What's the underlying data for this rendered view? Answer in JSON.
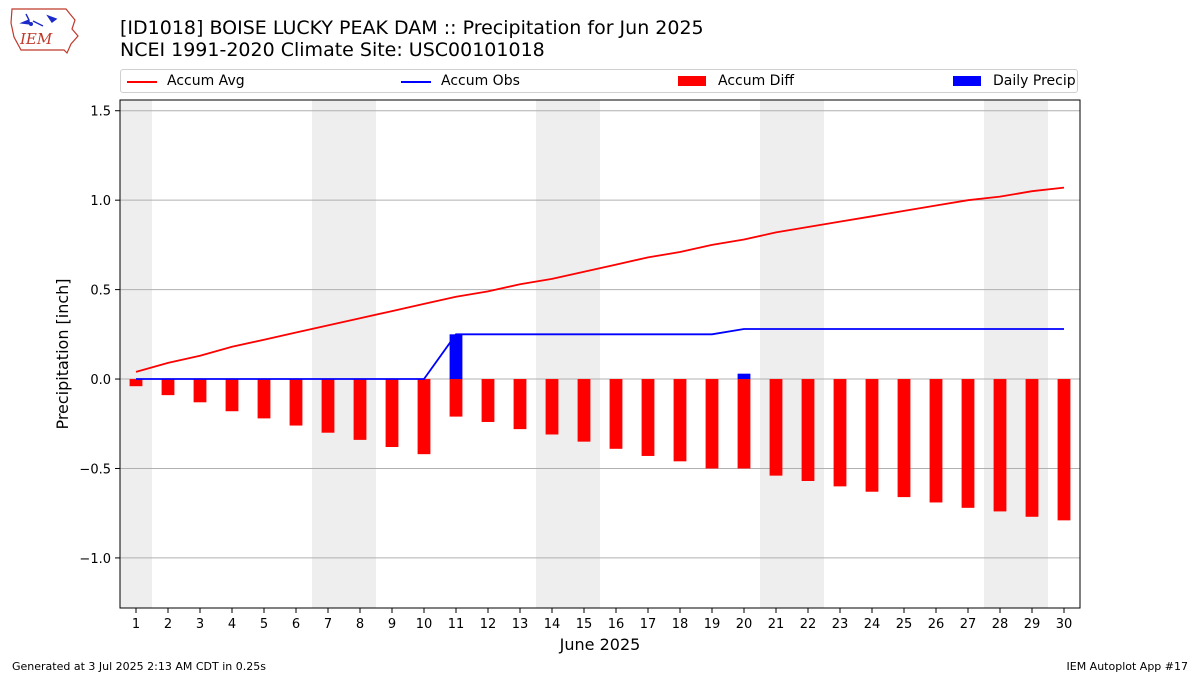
{
  "header": {
    "title_line1": "[ID1018] BOISE LUCKY PEAK DAM :: Precipitation for Jun 2025",
    "title_line2": "NCEI 1991-2020 Climate Site: USC00101018",
    "logo_text": "IEM"
  },
  "footer": {
    "generated": "Generated at 3 Jul 2025 2:13 AM CDT in 0.25s",
    "app": "IEM Autoplot App #17"
  },
  "colors": {
    "avg": "#ff0000",
    "obs": "#0000ff",
    "diff": "#ff0000",
    "daily": "#0000ff",
    "weekend_shade": "#eeeeee",
    "grid": "#b0b0b0"
  },
  "chart_data": {
    "type": "bar",
    "title": "[ID1018] BOISE LUCKY PEAK DAM :: Precipitation for Jun 2025",
    "subtitle": "NCEI 1991-2020 Climate Site: USC00101018",
    "xlabel": "June 2025",
    "ylabel": "Precipitation [inch]",
    "x": [
      1,
      2,
      3,
      4,
      5,
      6,
      7,
      8,
      9,
      10,
      11,
      12,
      13,
      14,
      15,
      16,
      17,
      18,
      19,
      20,
      21,
      22,
      23,
      24,
      25,
      26,
      27,
      28,
      29,
      30
    ],
    "xlim": [
      0.5,
      30.5
    ],
    "ylim": [
      -1.28,
      1.56
    ],
    "yticks": [
      -1.0,
      -0.5,
      0.0,
      0.5,
      1.0,
      1.5
    ],
    "ytick_labels": [
      "−1.0",
      "−0.5",
      "0.0",
      "0.5",
      "1.0",
      "1.5"
    ],
    "grid": "horizontal",
    "legend_position": "top",
    "weekend_days": [
      1,
      7,
      8,
      14,
      15,
      21,
      22,
      28,
      29
    ],
    "series": [
      {
        "name": "Accum Avg",
        "type": "line",
        "values": [
          0.04,
          0.09,
          0.13,
          0.18,
          0.22,
          0.26,
          0.3,
          0.34,
          0.38,
          0.42,
          0.46,
          0.49,
          0.53,
          0.56,
          0.6,
          0.64,
          0.68,
          0.71,
          0.75,
          0.78,
          0.82,
          0.85,
          0.88,
          0.91,
          0.94,
          0.97,
          1.0,
          1.02,
          1.05,
          1.07
        ]
      },
      {
        "name": "Accum Obs",
        "type": "line",
        "values": [
          0,
          0,
          0,
          0,
          0,
          0,
          0,
          0,
          0,
          0,
          0.25,
          0.25,
          0.25,
          0.25,
          0.25,
          0.25,
          0.25,
          0.25,
          0.25,
          0.28,
          0.28,
          0.28,
          0.28,
          0.28,
          0.28,
          0.28,
          0.28,
          0.28,
          0.28,
          0.28
        ]
      },
      {
        "name": "Accum Diff",
        "type": "bar",
        "values": [
          -0.04,
          -0.09,
          -0.13,
          -0.18,
          -0.22,
          -0.26,
          -0.3,
          -0.34,
          -0.38,
          -0.42,
          -0.21,
          -0.24,
          -0.28,
          -0.31,
          -0.35,
          -0.39,
          -0.43,
          -0.46,
          -0.5,
          -0.5,
          -0.54,
          -0.57,
          -0.6,
          -0.63,
          -0.66,
          -0.69,
          -0.72,
          -0.74,
          -0.77,
          -0.79
        ]
      },
      {
        "name": "Daily Precip",
        "type": "bar",
        "values": [
          0,
          0,
          0,
          0,
          0,
          0,
          0,
          0,
          0,
          0,
          0.25,
          0,
          0,
          0,
          0,
          0,
          0,
          0,
          0,
          0.03,
          0,
          0,
          0,
          0,
          0,
          0,
          0,
          0,
          0,
          0
        ]
      }
    ]
  }
}
